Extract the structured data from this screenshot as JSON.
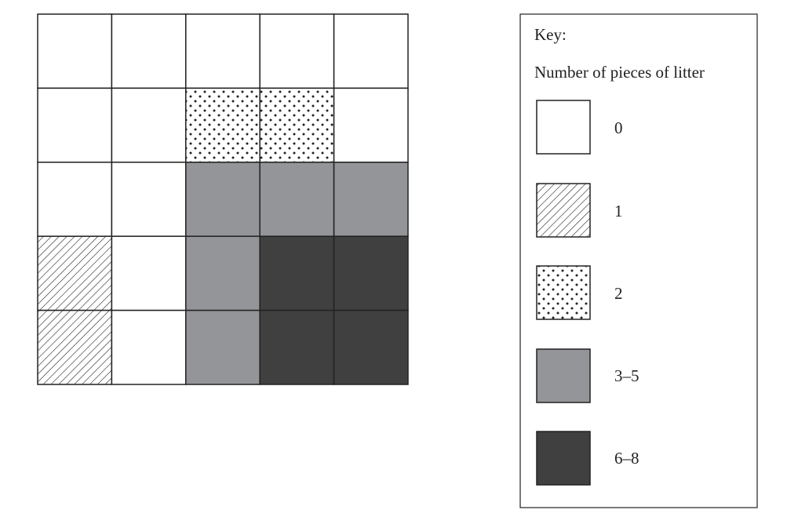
{
  "key": {
    "title": "Key:",
    "subtitle": "Number of pieces of litter",
    "labels": [
      "0",
      "1",
      "2",
      "3–5",
      "6–8"
    ]
  }
}
